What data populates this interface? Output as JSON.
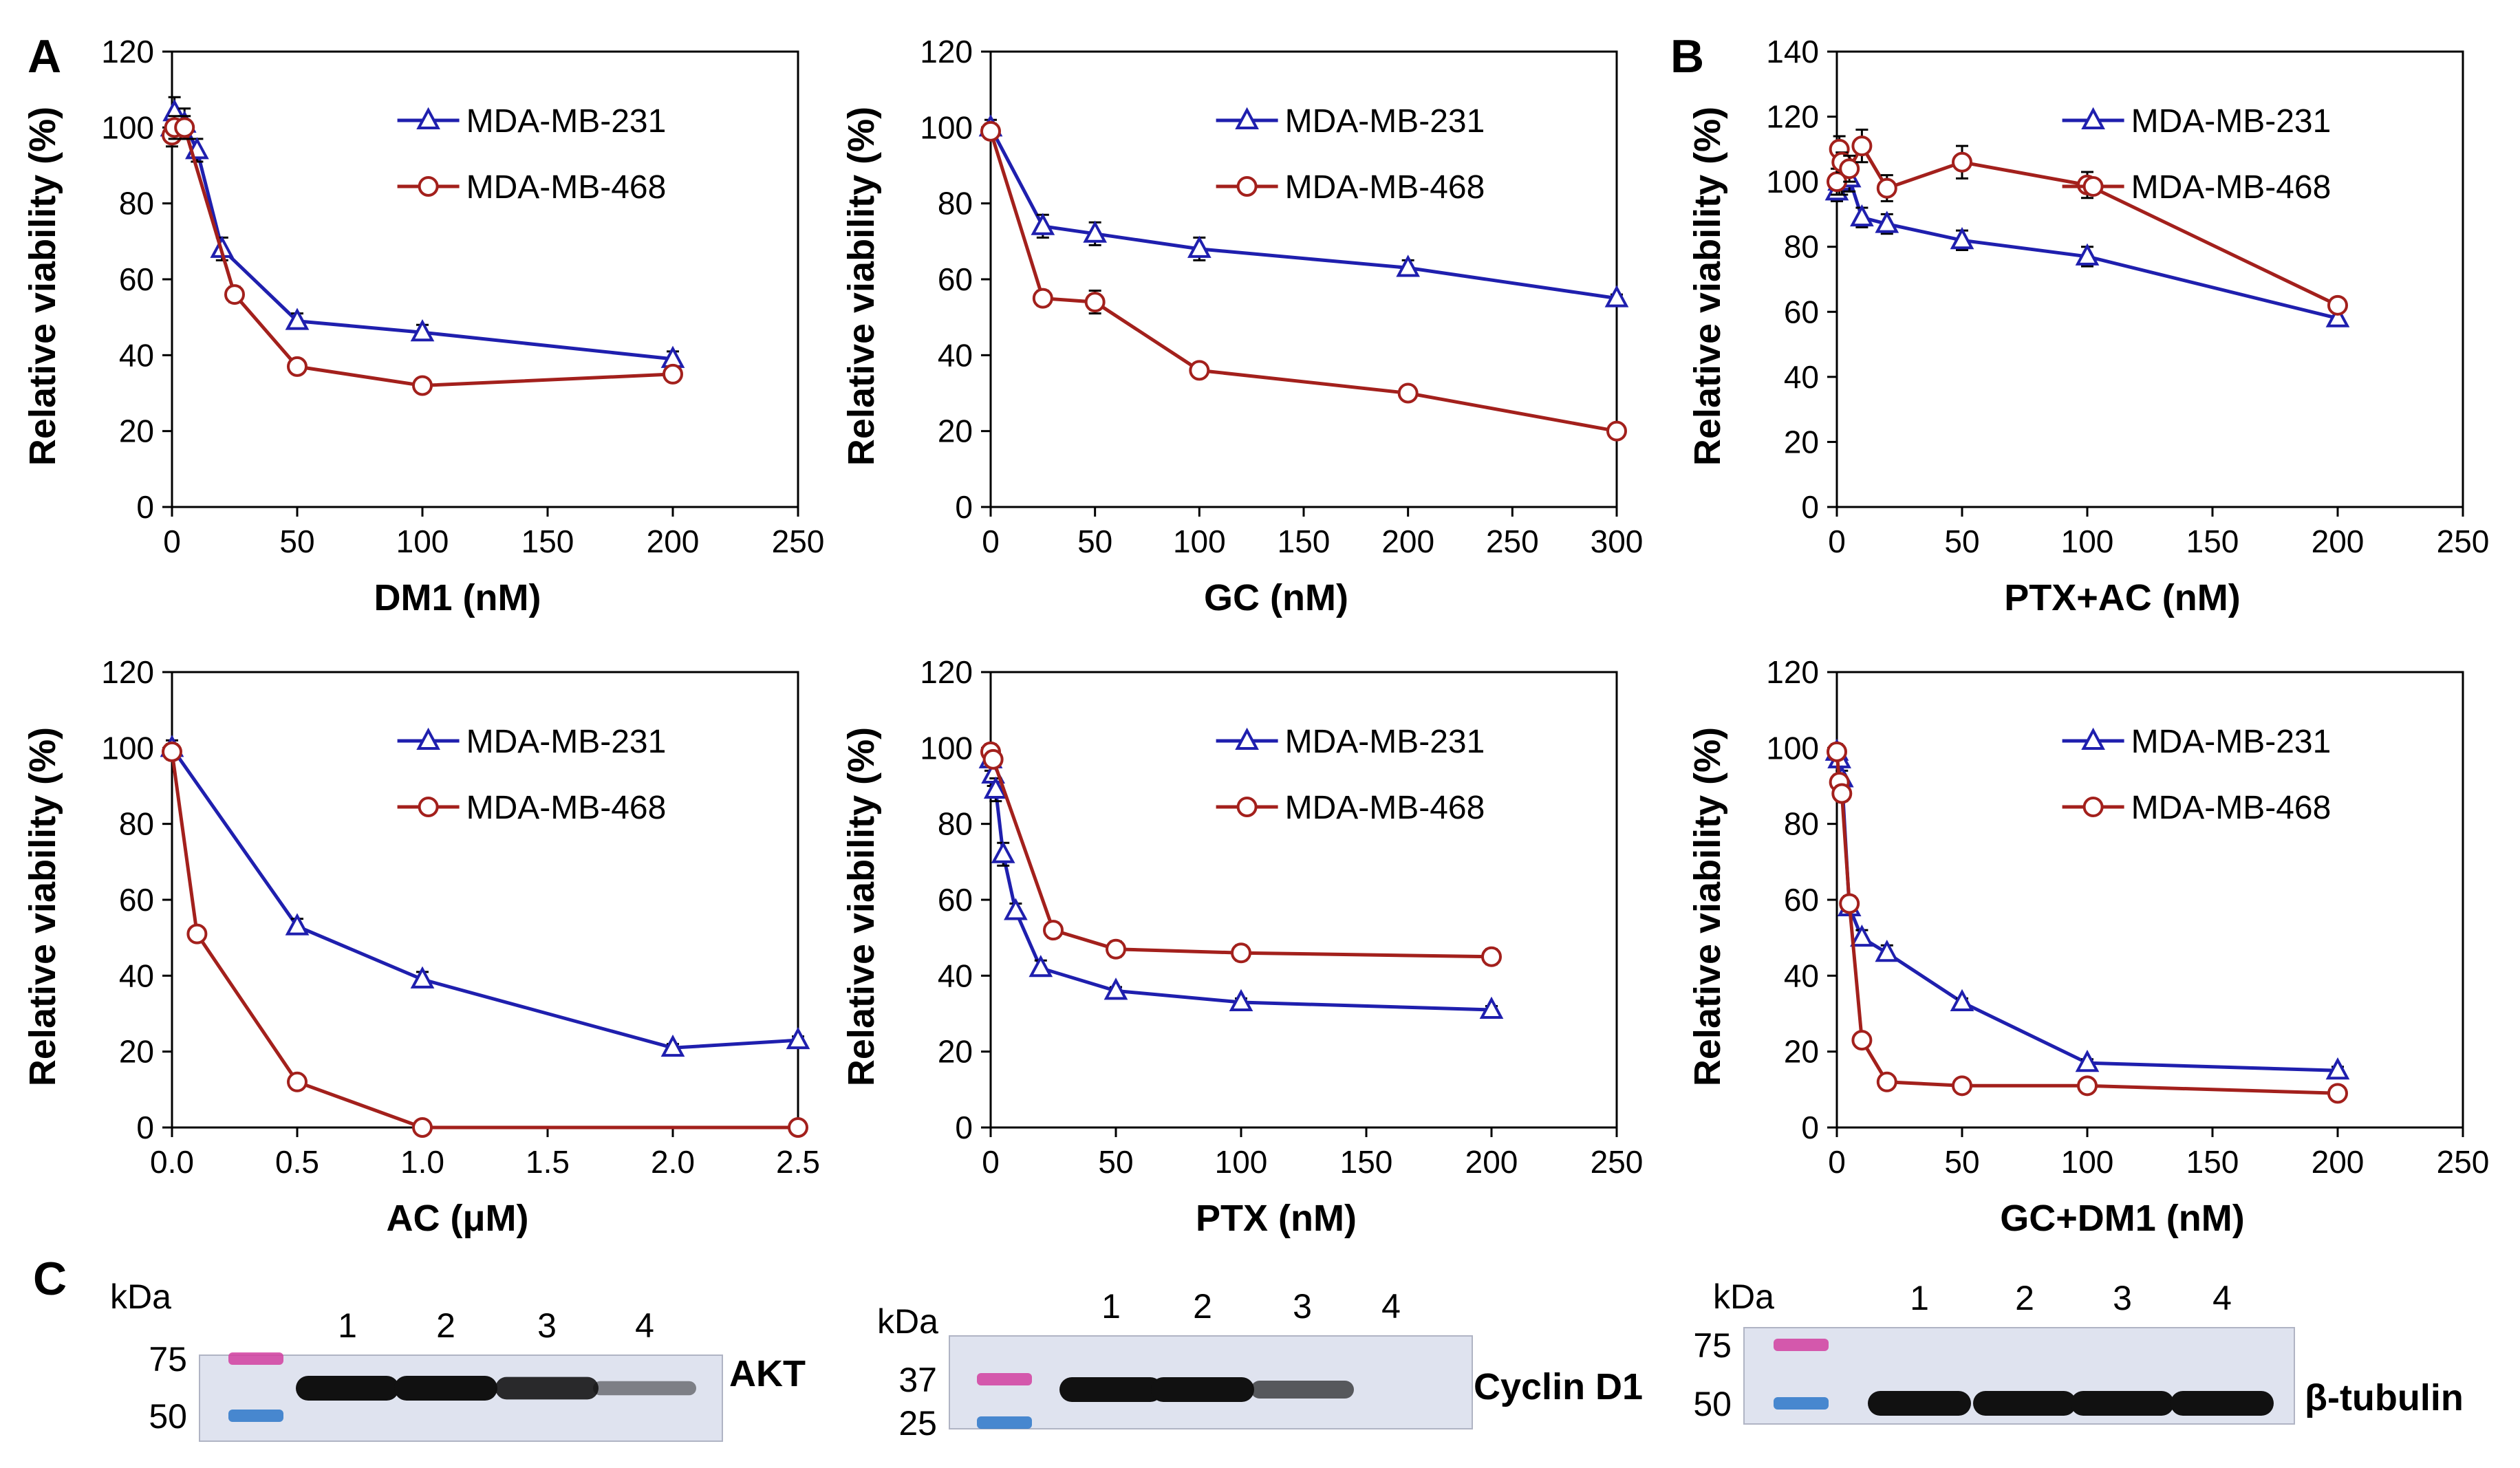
{
  "panel_letters": {
    "a": "A",
    "b": "B",
    "c": "C"
  },
  "colors": {
    "series1": "#1f1fae",
    "series2": "#a3201c",
    "error": "#000000",
    "axis": "#000000"
  },
  "chart_data": [
    {
      "id": "dm1",
      "type": "line",
      "ylabel": "Relative viability (%)",
      "xlabel": "DM1 (nM)",
      "xlim": [
        0,
        250
      ],
      "xticks": [
        0,
        50,
        100,
        150,
        200,
        250
      ],
      "xtick_labels": [
        "0",
        "50",
        "100",
        "150",
        "200",
        "250"
      ],
      "ylim": [
        0,
        120
      ],
      "yticks": [
        0,
        20,
        40,
        60,
        80,
        100,
        120
      ],
      "ytick_labels": [
        "0",
        "20",
        "40",
        "60",
        "80",
        "100",
        "120"
      ],
      "legend_position": "top-right",
      "grid": false,
      "series": [
        {
          "name": "MDA-MB-231",
          "marker": "triangle",
          "x": [
            0,
            1,
            5,
            10,
            20,
            50,
            100,
            200
          ],
          "values": [
            100,
            104,
            101,
            94,
            68,
            49,
            46,
            39
          ],
          "err": [
            3,
            4,
            4,
            3,
            3,
            2,
            2,
            2
          ]
        },
        {
          "name": "MDA-MB-468",
          "marker": "circle",
          "x": [
            0,
            1,
            5,
            25,
            50,
            100,
            200
          ],
          "values": [
            98,
            100,
            100,
            56,
            37,
            32,
            35
          ],
          "err": [
            3,
            3,
            3,
            2,
            1,
            1,
            1
          ]
        }
      ]
    },
    {
      "id": "gc",
      "type": "line",
      "ylabel": "Relative viability (%)",
      "xlabel": "GC (nM)",
      "xlim": [
        0,
        300
      ],
      "xticks": [
        0,
        50,
        100,
        150,
        200,
        250,
        300
      ],
      "xtick_labels": [
        "0",
        "50",
        "100",
        "150",
        "200",
        "250",
        "300"
      ],
      "ylim": [
        0,
        120
      ],
      "yticks": [
        0,
        20,
        40,
        60,
        80,
        100,
        120
      ],
      "ytick_labels": [
        "0",
        "20",
        "40",
        "60",
        "80",
        "100",
        "120"
      ],
      "legend_position": "top-right",
      "grid": false,
      "series": [
        {
          "name": "MDA-MB-231",
          "marker": "triangle",
          "x": [
            0,
            25,
            50,
            100,
            200,
            300
          ],
          "values": [
            100,
            74,
            72,
            68,
            63,
            55
          ],
          "err": [
            2,
            3,
            3,
            3,
            2,
            1
          ]
        },
        {
          "name": "MDA-MB-468",
          "marker": "circle",
          "x": [
            0,
            25,
            50,
            100,
            200,
            300
          ],
          "values": [
            99,
            55,
            54,
            36,
            30,
            20
          ],
          "err": [
            2,
            2,
            3,
            1,
            1,
            1
          ]
        }
      ]
    },
    {
      "id": "ptxac",
      "type": "line",
      "ylabel": "Relative viability (%)",
      "xlabel": "PTX+AC (nM)",
      "xlim": [
        0,
        250
      ],
      "xticks": [
        0,
        50,
        100,
        150,
        200,
        250
      ],
      "xtick_labels": [
        "0",
        "50",
        "100",
        "150",
        "200",
        "250"
      ],
      "ylim": [
        0,
        140
      ],
      "yticks": [
        0,
        20,
        40,
        60,
        80,
        100,
        120,
        140
      ],
      "ytick_labels": [
        "0",
        "20",
        "40",
        "60",
        "80",
        "100",
        "120",
        "140"
      ],
      "legend_position": "top-right",
      "grid": false,
      "series": [
        {
          "name": "MDA-MB-231",
          "marker": "triangle",
          "x": [
            0,
            1,
            2,
            5,
            10,
            20,
            50,
            100,
            200
          ],
          "values": [
            97,
            100,
            100,
            101,
            89,
            87,
            82,
            77,
            58
          ],
          "err": [
            3,
            4,
            4,
            4,
            3,
            3,
            3,
            3,
            2
          ]
        },
        {
          "name": "MDA-MB-468",
          "marker": "circle",
          "x": [
            0,
            1,
            2,
            5,
            10,
            20,
            50,
            100,
            200
          ],
          "values": [
            100,
            110,
            106,
            104,
            111,
            98,
            106,
            99,
            62
          ],
          "err": [
            4,
            4,
            3,
            4,
            5,
            4,
            5,
            4,
            2
          ]
        }
      ]
    },
    {
      "id": "ac",
      "type": "line",
      "ylabel": "Relative viability (%)",
      "xlabel": "AC (μM)",
      "xlim": [
        0,
        2.5
      ],
      "xticks": [
        0,
        0.5,
        1,
        1.5,
        2,
        2.5
      ],
      "xtick_labels": [
        "0.0",
        "0.5",
        "1.0",
        "1.5",
        "2.0",
        "2.5"
      ],
      "ylim": [
        0,
        120
      ],
      "yticks": [
        0,
        20,
        40,
        60,
        80,
        100,
        120
      ],
      "ytick_labels": [
        "0",
        "20",
        "40",
        "60",
        "80",
        "100",
        "120"
      ],
      "legend_position": "top-right",
      "grid": false,
      "series": [
        {
          "name": "MDA-MB-231",
          "marker": "triangle",
          "x": [
            0,
            0.5,
            1,
            2,
            2.5
          ],
          "values": [
            100,
            53,
            39,
            21,
            23
          ],
          "err": [
            2,
            2,
            2,
            1,
            1
          ]
        },
        {
          "name": "MDA-MB-468",
          "marker": "circle",
          "x": [
            0,
            0.1,
            0.5,
            1,
            2.5
          ],
          "values": [
            99,
            51,
            12,
            0,
            0
          ],
          "err": [
            2,
            1,
            1,
            0,
            0
          ]
        }
      ]
    },
    {
      "id": "ptx",
      "type": "line",
      "ylabel": "Relative viability (%)",
      "xlabel": "PTX (nM)",
      "xlim": [
        0,
        250
      ],
      "xticks": [
        0,
        50,
        100,
        150,
        200,
        250
      ],
      "xtick_labels": [
        "0",
        "50",
        "100",
        "150",
        "200",
        "250"
      ],
      "ylim": [
        0,
        120
      ],
      "yticks": [
        0,
        20,
        40,
        60,
        80,
        100,
        120
      ],
      "ytick_labels": [
        "0",
        "20",
        "40",
        "60",
        "80",
        "100",
        "120"
      ],
      "legend_position": "top-right",
      "grid": false,
      "series": [
        {
          "name": "MDA-MB-231",
          "marker": "triangle",
          "x": [
            0,
            1,
            2,
            5,
            10,
            20,
            50,
            100,
            200
          ],
          "values": [
            97,
            93,
            89,
            72,
            57,
            42,
            36,
            33,
            31
          ],
          "err": [
            3,
            3,
            3,
            3,
            2,
            2,
            1,
            1,
            1
          ]
        },
        {
          "name": "MDA-MB-468",
          "marker": "circle",
          "x": [
            0,
            1,
            25,
            50,
            100,
            200
          ],
          "values": [
            99,
            97,
            52,
            47,
            46,
            45
          ],
          "err": [
            2,
            2,
            2,
            2,
            2,
            2
          ]
        }
      ]
    },
    {
      "id": "gcdm1",
      "type": "line",
      "ylabel": "Relative viability (%)",
      "xlabel": "GC+DM1 (nM)",
      "xlim": [
        0,
        250
      ],
      "xticks": [
        0,
        50,
        100,
        150,
        200,
        250
      ],
      "xtick_labels": [
        "0",
        "50",
        "100",
        "150",
        "200",
        "250"
      ],
      "ylim": [
        0,
        120
      ],
      "yticks": [
        0,
        20,
        40,
        60,
        80,
        100,
        120
      ],
      "ytick_labels": [
        "0",
        "20",
        "40",
        "60",
        "80",
        "100",
        "120"
      ],
      "legend_position": "top-right",
      "grid": false,
      "series": [
        {
          "name": "MDA-MB-231",
          "marker": "triangle",
          "x": [
            0,
            1,
            2,
            5,
            10,
            20,
            50,
            100,
            200
          ],
          "values": [
            99,
            97,
            92,
            58,
            50,
            46,
            33,
            17,
            15
          ],
          "err": [
            2,
            2,
            2,
            2,
            2,
            2,
            1,
            1,
            1
          ]
        },
        {
          "name": "MDA-MB-468",
          "marker": "circle",
          "x": [
            0,
            1,
            2,
            5,
            10,
            20,
            50,
            100,
            200
          ],
          "values": [
            99,
            91,
            88,
            59,
            23,
            12,
            11,
            11,
            9
          ],
          "err": [
            2,
            2,
            2,
            2,
            1,
            1,
            1,
            1,
            1
          ]
        }
      ]
    }
  ],
  "western_blots": [
    {
      "id": "akt",
      "kda_label": "kDa",
      "markers": [
        "75",
        "50"
      ],
      "lanes": [
        "1",
        "2",
        "3",
        "4"
      ],
      "protein": "AKT",
      "band_intensity": [
        1.0,
        1.0,
        0.85,
        0.3
      ]
    },
    {
      "id": "cyclin",
      "kda_label": "kDa",
      "markers": [
        "37",
        "25"
      ],
      "lanes": [
        "1",
        "2",
        "3",
        "4"
      ],
      "protein": "Cyclin D1",
      "band_intensity": [
        1.0,
        1.0,
        0.55,
        0.0
      ]
    },
    {
      "id": "tubulin",
      "kda_label": "kDa",
      "markers": [
        "75",
        "50"
      ],
      "lanes": [
        "1",
        "2",
        "3",
        "4"
      ],
      "protein": "β-tubulin",
      "band_intensity": [
        1.0,
        1.0,
        1.0,
        1.0
      ]
    }
  ]
}
